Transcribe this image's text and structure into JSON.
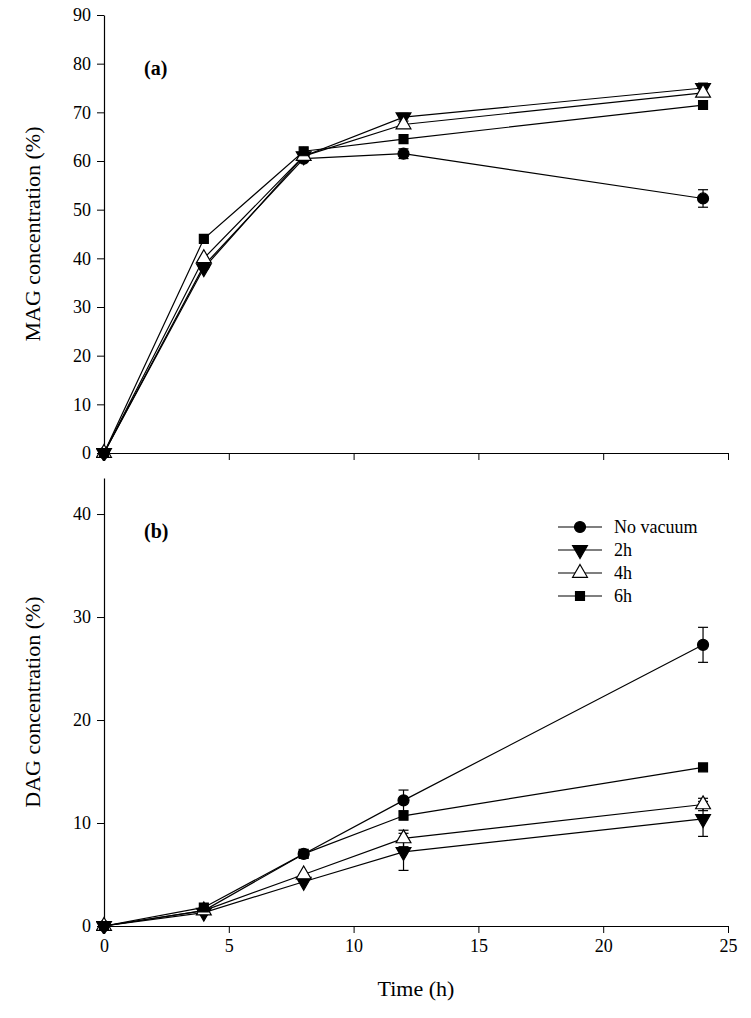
{
  "chart_data": [
    {
      "type": "line",
      "annotations": [
        "(a)"
      ],
      "ylabel": "MAG concentration (%)",
      "x": [
        0,
        4,
        8,
        12,
        24
      ],
      "xlim": [
        0,
        25
      ],
      "xticks": [
        0,
        5,
        10,
        15,
        20,
        25
      ],
      "ylim": [
        0,
        90
      ],
      "yticks": [
        0,
        10,
        20,
        30,
        40,
        50,
        60,
        70,
        80,
        90
      ],
      "tick_labels": "y",
      "series": [
        {
          "name": "No vacuum",
          "color": "#000000",
          "marker": "circle",
          "values": [
            0,
            38.5,
            60.5,
            61.5,
            52.3
          ],
          "errors": [
            null,
            null,
            null,
            1.0,
            1.8
          ]
        },
        {
          "name": "2h",
          "color": "#000000",
          "marker": "triangle-down",
          "values": [
            0,
            38,
            61,
            69,
            75
          ],
          "errors": [
            null,
            null,
            null,
            0.8,
            1.0
          ]
        },
        {
          "name": "4h",
          "color": "#000000",
          "marker": "triangle-up-open",
          "values": [
            0,
            40,
            61,
            67.5,
            74
          ],
          "errors": [
            null,
            null,
            null,
            null,
            null
          ]
        },
        {
          "name": "6h",
          "color": "#000000",
          "marker": "square",
          "values": [
            0,
            44,
            62,
            64.5,
            71.5
          ],
          "errors": [
            null,
            null,
            null,
            null,
            null
          ]
        }
      ]
    },
    {
      "type": "line",
      "annotations": [
        "(b)"
      ],
      "xlabel": "Time (h)",
      "ylabel": "DAG concentration (%)",
      "x": [
        0,
        4,
        8,
        12,
        24
      ],
      "xlim": [
        0,
        25
      ],
      "xticks": [
        0,
        5,
        10,
        15,
        20,
        25
      ],
      "ylim": [
        0,
        43.5
      ],
      "yticks": [
        0,
        10,
        20,
        30,
        40
      ],
      "legend": "upper right",
      "series": [
        {
          "name": "No vacuum",
          "color": "#000000",
          "marker": "circle",
          "values": [
            0,
            1.5,
            7,
            12.2,
            27.3
          ],
          "errors": [
            null,
            null,
            null,
            1.0,
            1.7
          ]
        },
        {
          "name": "2h",
          "color": "#000000",
          "marker": "triangle-down",
          "values": [
            0,
            1.3,
            4.3,
            7.2,
            10.4
          ],
          "errors": [
            null,
            null,
            null,
            1.8,
            1.7
          ]
        },
        {
          "name": "4h",
          "color": "#000000",
          "marker": "triangle-up-open",
          "values": [
            0,
            1.5,
            5,
            8.5,
            11.8
          ],
          "errors": [
            null,
            null,
            null,
            0.8,
            0.6
          ]
        },
        {
          "name": "6h",
          "color": "#000000",
          "marker": "square",
          "values": [
            0,
            1.8,
            7,
            10.7,
            15.4
          ],
          "errors": [
            null,
            null,
            null,
            null,
            null
          ]
        }
      ]
    }
  ]
}
